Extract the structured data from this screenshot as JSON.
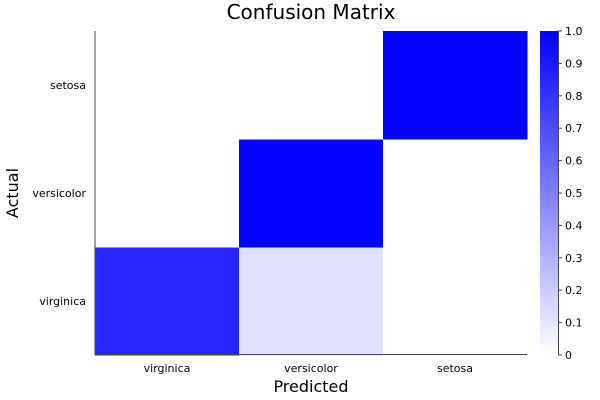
{
  "chart_data": {
    "type": "heatmap",
    "title": "Confusion Matrix",
    "xlabel": "Predicted",
    "ylabel": "Actual",
    "x_categories": [
      "virginica",
      "versicolor",
      "setosa"
    ],
    "y_categories": [
      "virginica",
      "versicolor",
      "setosa"
    ],
    "values": [
      [
        0.86,
        0.12,
        0.0
      ],
      [
        0.0,
        0.98,
        0.0
      ],
      [
        0.0,
        0.0,
        0.98
      ]
    ],
    "colorbar": {
      "range": [
        0,
        1
      ],
      "ticks": [
        "0",
        "0.1",
        "0.2",
        "0.3",
        "0.4",
        "0.5",
        "0.6",
        "0.7",
        "0.8",
        "0.9",
        "1.0"
      ],
      "color_low": "#ffffff",
      "color_high": "#0000ff"
    },
    "grid": false
  }
}
